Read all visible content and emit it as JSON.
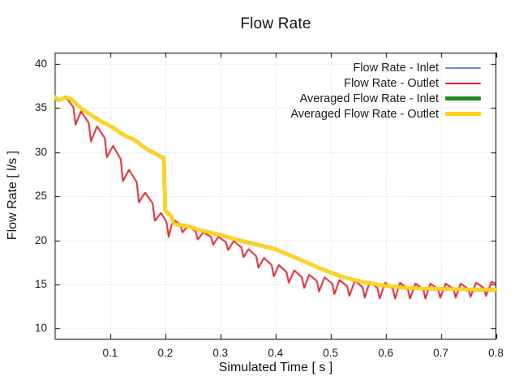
{
  "chart_data": {
    "type": "line",
    "title": "Flow Rate",
    "xlabel": "Simulated Time [ s ]",
    "ylabel": "Flow Rate [ l/s ]",
    "xlim": [
      0,
      0.8
    ],
    "ylim": [
      8.85,
      41.25
    ],
    "xticks": [
      "0.1",
      "0.2",
      "0.3",
      "0.4",
      "0.5",
      "0.6",
      "0.7",
      "0.8"
    ],
    "yticks": [
      "10",
      "15",
      "20",
      "25",
      "30",
      "35",
      "40"
    ],
    "grid": true,
    "grid_color": "#c9c9c9",
    "frame_color": "#000000",
    "background": "#ffffff",
    "legend_position": "top-right-inside",
    "series": [
      {
        "name": "Flow Rate - Inlet",
        "color": "#6d87dd",
        "line_width": 1.6,
        "swatch": "thin",
        "data": "outlet_instantaneous"
      },
      {
        "name": "Flow Rate - Outlet",
        "color": "#e62020",
        "line_width": 1.8,
        "swatch": "thin",
        "data": "outlet_instantaneous"
      },
      {
        "name": "Averaged Flow Rate - Inlet",
        "color": "#228b22",
        "line_width": 4.2,
        "swatch": "thick",
        "data": "averaged"
      },
      {
        "name": "Averaged Flow Rate - Outlet",
        "color": "#ffd320",
        "line_width": 4.6,
        "swatch": "thick",
        "data": "averaged"
      }
    ],
    "datasets": {
      "averaged": [
        [
          0.0,
          36.2
        ],
        [
          0.006,
          35.85
        ],
        [
          0.013,
          36.0
        ],
        [
          0.02,
          36.2
        ],
        [
          0.03,
          35.95
        ],
        [
          0.04,
          35.35
        ],
        [
          0.05,
          34.8
        ],
        [
          0.06,
          34.4
        ],
        [
          0.07,
          34.0
        ],
        [
          0.08,
          33.6
        ],
        [
          0.09,
          33.25
        ],
        [
          0.1,
          32.95
        ],
        [
          0.11,
          32.55
        ],
        [
          0.12,
          32.1
        ],
        [
          0.13,
          31.75
        ],
        [
          0.14,
          31.5
        ],
        [
          0.15,
          31.1
        ],
        [
          0.16,
          30.6
        ],
        [
          0.17,
          30.2
        ],
        [
          0.18,
          29.9
        ],
        [
          0.19,
          29.55
        ],
        [
          0.197,
          29.35
        ],
        [
          0.2,
          23.4
        ],
        [
          0.206,
          23.0
        ],
        [
          0.211,
          22.75
        ],
        [
          0.214,
          22.0
        ],
        [
          0.22,
          21.8
        ],
        [
          0.24,
          21.6
        ],
        [
          0.26,
          21.2
        ],
        [
          0.28,
          20.9
        ],
        [
          0.3,
          20.6
        ],
        [
          0.32,
          20.25
        ],
        [
          0.34,
          19.9
        ],
        [
          0.36,
          19.6
        ],
        [
          0.38,
          19.3
        ],
        [
          0.4,
          19.0
        ],
        [
          0.42,
          18.45
        ],
        [
          0.44,
          17.95
        ],
        [
          0.46,
          17.4
        ],
        [
          0.48,
          16.85
        ],
        [
          0.5,
          16.35
        ],
        [
          0.52,
          15.9
        ],
        [
          0.54,
          15.55
        ],
        [
          0.56,
          15.25
        ],
        [
          0.58,
          15.05
        ],
        [
          0.6,
          14.85
        ],
        [
          0.63,
          14.65
        ],
        [
          0.66,
          14.55
        ],
        [
          0.7,
          14.5
        ],
        [
          0.74,
          14.45
        ],
        [
          0.77,
          14.4
        ],
        [
          0.8,
          14.4
        ]
      ],
      "outlet_instantaneous": [
        [
          0.0,
          36.25
        ],
        [
          0.006,
          35.75
        ],
        [
          0.011,
          35.95
        ],
        [
          0.018,
          36.3
        ],
        [
          0.033,
          35.1
        ],
        [
          0.037,
          33.1
        ],
        [
          0.047,
          34.6
        ],
        [
          0.061,
          33.3
        ],
        [
          0.065,
          31.2
        ],
        [
          0.076,
          32.9
        ],
        [
          0.09,
          31.6
        ],
        [
          0.094,
          29.4
        ],
        [
          0.105,
          30.7
        ],
        [
          0.119,
          29.2
        ],
        [
          0.123,
          26.7
        ],
        [
          0.134,
          28.0
        ],
        [
          0.148,
          26.6
        ],
        [
          0.152,
          24.3
        ],
        [
          0.163,
          25.4
        ],
        [
          0.177,
          24.2
        ],
        [
          0.181,
          22.2
        ],
        [
          0.192,
          23.1
        ],
        [
          0.202,
          22.1
        ],
        [
          0.206,
          20.4
        ],
        [
          0.214,
          22.4
        ],
        [
          0.227,
          21.8
        ],
        [
          0.231,
          20.9
        ],
        [
          0.241,
          21.6
        ],
        [
          0.255,
          21.0
        ],
        [
          0.259,
          20.1
        ],
        [
          0.269,
          20.9
        ],
        [
          0.283,
          20.4
        ],
        [
          0.287,
          19.5
        ],
        [
          0.296,
          20.4
        ],
        [
          0.31,
          19.8
        ],
        [
          0.314,
          18.9
        ],
        [
          0.324,
          19.9
        ],
        [
          0.338,
          19.2
        ],
        [
          0.342,
          18.1
        ],
        [
          0.351,
          19.0
        ],
        [
          0.365,
          18.2
        ],
        [
          0.369,
          16.9
        ],
        [
          0.379,
          18.0
        ],
        [
          0.393,
          17.2
        ],
        [
          0.397,
          15.9
        ],
        [
          0.406,
          17.2
        ],
        [
          0.42,
          16.4
        ],
        [
          0.424,
          15.2
        ],
        [
          0.434,
          16.6
        ],
        [
          0.448,
          15.8
        ],
        [
          0.452,
          14.6
        ],
        [
          0.461,
          16.1
        ],
        [
          0.475,
          15.4
        ],
        [
          0.479,
          14.2
        ],
        [
          0.489,
          15.8
        ],
        [
          0.503,
          15.1
        ],
        [
          0.507,
          13.9
        ],
        [
          0.516,
          15.5
        ],
        [
          0.53,
          14.8
        ],
        [
          0.534,
          13.7
        ],
        [
          0.544,
          15.4
        ],
        [
          0.558,
          14.7
        ],
        [
          0.562,
          13.5
        ],
        [
          0.571,
          15.3
        ],
        [
          0.585,
          14.6
        ],
        [
          0.589,
          13.4
        ],
        [
          0.599,
          15.2
        ],
        [
          0.613,
          14.5
        ],
        [
          0.617,
          13.4
        ],
        [
          0.626,
          15.2
        ],
        [
          0.64,
          14.5
        ],
        [
          0.644,
          13.4
        ],
        [
          0.654,
          15.1
        ],
        [
          0.668,
          14.5
        ],
        [
          0.672,
          13.4
        ],
        [
          0.681,
          15.1
        ],
        [
          0.695,
          14.5
        ],
        [
          0.699,
          13.5
        ],
        [
          0.709,
          15.1
        ],
        [
          0.723,
          14.5
        ],
        [
          0.727,
          13.5
        ],
        [
          0.736,
          15.1
        ],
        [
          0.75,
          14.5
        ],
        [
          0.754,
          13.6
        ],
        [
          0.764,
          15.2
        ],
        [
          0.778,
          14.6
        ],
        [
          0.782,
          13.7
        ],
        [
          0.792,
          15.3
        ],
        [
          0.8,
          15.1
        ]
      ]
    }
  }
}
